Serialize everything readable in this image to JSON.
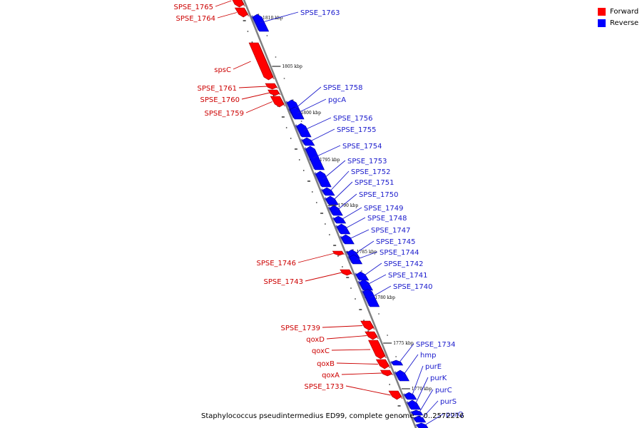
{
  "legend": {
    "forward_label": "Forward",
    "reverse_label": "Reverse",
    "forward_color": "#ff0000",
    "reverse_color": "#0000ff"
  },
  "caption": "Staphylococcus pseudintermedius ED99, complete genome. - 0..2572216",
  "colors": {
    "label_forward": "#cc0000",
    "label_reverse": "#1a1acc",
    "backbone": "#808080",
    "tick_label": "#000000"
  },
  "scale_ticks": [
    "1810 kbp",
    "1805 kbp",
    "1800 kbp",
    "1795 kbp",
    "1790 kbp",
    "1785 kbp",
    "1780 kbp",
    "1775 kbp",
    "1770 kbp"
  ],
  "genes": [
    {
      "name": "SPSE_1765",
      "strand": "forward"
    },
    {
      "name": "SPSE_1764",
      "strand": "forward"
    },
    {
      "name": "SPSE_1763",
      "strand": "reverse"
    },
    {
      "name": "spsC",
      "strand": "forward"
    },
    {
      "name": "SPSE_1761",
      "strand": "forward"
    },
    {
      "name": "SPSE_1760",
      "strand": "forward"
    },
    {
      "name": "SPSE_1759",
      "strand": "forward"
    },
    {
      "name": "SPSE_1758",
      "strand": "reverse"
    },
    {
      "name": "pgcA",
      "strand": "reverse"
    },
    {
      "name": "SPSE_1756",
      "strand": "reverse"
    },
    {
      "name": "SPSE_1755",
      "strand": "reverse"
    },
    {
      "name": "SPSE_1754",
      "strand": "reverse"
    },
    {
      "name": "SPSE_1753",
      "strand": "reverse"
    },
    {
      "name": "SPSE_1752",
      "strand": "reverse"
    },
    {
      "name": "SPSE_1751",
      "strand": "reverse"
    },
    {
      "name": "SPSE_1750",
      "strand": "reverse"
    },
    {
      "name": "SPSE_1749",
      "strand": "reverse"
    },
    {
      "name": "SPSE_1748",
      "strand": "reverse"
    },
    {
      "name": "SPSE_1747",
      "strand": "reverse"
    },
    {
      "name": "SPSE_1745",
      "strand": "reverse"
    },
    {
      "name": "SPSE_1744",
      "strand": "reverse"
    },
    {
      "name": "SPSE_1746",
      "strand": "forward"
    },
    {
      "name": "SPSE_1742",
      "strand": "reverse"
    },
    {
      "name": "SPSE_1741",
      "strand": "reverse"
    },
    {
      "name": "SPSE_1743",
      "strand": "forward"
    },
    {
      "name": "SPSE_1740",
      "strand": "reverse"
    },
    {
      "name": "SPSE_1739",
      "strand": "forward"
    },
    {
      "name": "qoxD",
      "strand": "forward"
    },
    {
      "name": "qoxC",
      "strand": "forward"
    },
    {
      "name": "qoxB",
      "strand": "forward"
    },
    {
      "name": "qoxA",
      "strand": "forward"
    },
    {
      "name": "SPSE_1733",
      "strand": "forward"
    },
    {
      "name": "SPSE_1734",
      "strand": "reverse"
    },
    {
      "name": "hmp",
      "strand": "reverse"
    },
    {
      "name": "purE",
      "strand": "reverse"
    },
    {
      "name": "purK",
      "strand": "reverse"
    },
    {
      "name": "purC",
      "strand": "reverse"
    },
    {
      "name": "purS",
      "strand": "reverse"
    },
    {
      "name": "purQ",
      "strand": "reverse"
    }
  ]
}
